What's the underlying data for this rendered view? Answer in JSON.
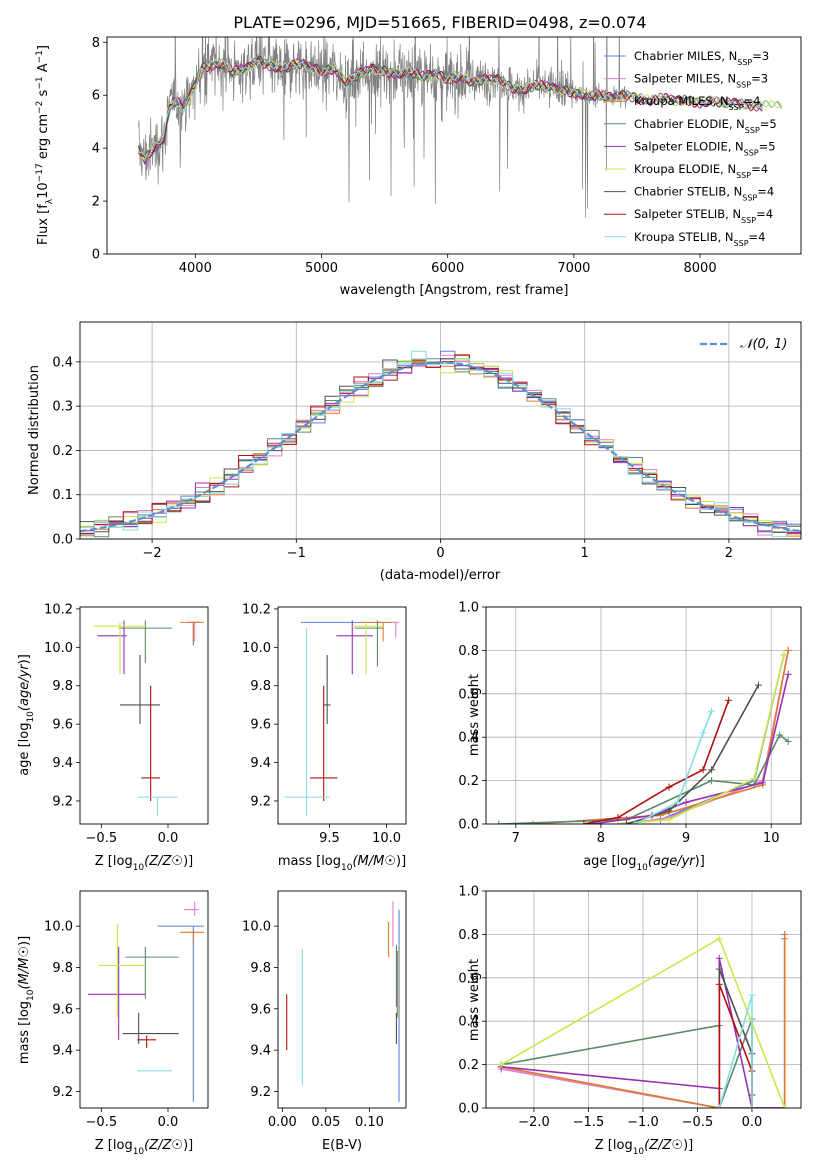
{
  "figure": {
    "title": "PLATE=0296, MJD=51665, FIBERID=0498, z=0.074"
  },
  "chart_data": [
    {
      "id": "spectrum",
      "type": "line",
      "xlabel": "wavelength [Angstrom, rest frame]",
      "ylabel": "Flux [fλ10⁻¹⁷ erg cm⁻² s⁻¹ A⁻¹]",
      "xlim": [
        3300,
        8800
      ],
      "ylim": [
        0,
        8.2
      ],
      "xticks": [
        4000,
        5000,
        6000,
        7000,
        8000
      ],
      "yticks": [
        0,
        2,
        4,
        6,
        8
      ],
      "legend_position": "right",
      "data_color": "#808080",
      "continuum": {
        "x": [
          3550,
          3600,
          3650,
          3700,
          3750,
          3800,
          3850,
          3900,
          3950,
          4000,
          4050,
          4100,
          4200,
          4300,
          4400,
          4500,
          4600,
          4700,
          4800,
          4900,
          5000,
          5100,
          5200,
          5300,
          5400,
          5500,
          5600,
          5700,
          5800,
          5900,
          6000,
          6100,
          6200,
          6300,
          6400,
          6500,
          6600,
          6700,
          6800,
          6900,
          7000,
          7100,
          7200,
          7300,
          7400,
          7500,
          7600,
          7700,
          7800,
          7900,
          8000,
          8100,
          8200,
          8300,
          8400,
          8500,
          8600,
          8700
        ],
        "y": [
          4.0,
          3.6,
          3.9,
          4.1,
          4.4,
          5.6,
          5.8,
          5.5,
          5.9,
          6.4,
          7.0,
          7.1,
          7.2,
          6.9,
          7.0,
          7.3,
          7.1,
          7.0,
          7.2,
          7.1,
          6.9,
          7.0,
          6.5,
          6.8,
          7.0,
          6.9,
          6.8,
          6.9,
          6.7,
          6.8,
          6.6,
          6.7,
          6.5,
          6.6,
          6.6,
          6.3,
          6.2,
          6.4,
          6.3,
          6.2,
          6.1,
          6.0,
          6.0,
          5.9,
          6.0,
          5.9,
          5.8,
          5.9,
          5.8,
          5.8,
          5.7,
          5.8,
          5.7,
          5.7,
          5.6,
          5.6,
          5.6,
          5.6
        ]
      },
      "series": [
        {
          "name": "Chabrier MILES, N_SSP=3",
          "label_main": "Chabrier MILES, N",
          "label_sub": "SSP",
          "label_end": "=3",
          "color": "#5b84d6"
        },
        {
          "name": "Salpeter MILES, N_SSP=3",
          "label_main": "Salpeter MILES, N",
          "label_sub": "SSP",
          "label_end": "=3",
          "color": "#e97ec8"
        },
        {
          "name": "Kroupa MILES, N_SSP=4",
          "label_main": "Kroupa MILES, N",
          "label_sub": "SSP",
          "label_end": "=4",
          "color": "#e07b2e"
        },
        {
          "name": "Chabrier ELODIE, N_SSP=5",
          "label_main": "Chabrier ELODIE, N",
          "label_sub": "SSP",
          "label_end": "=5",
          "color": "#5a8a6a"
        },
        {
          "name": "Salpeter ELODIE, N_SSP=5",
          "label_main": "Salpeter ELODIE, N",
          "label_sub": "SSP",
          "label_end": "=5",
          "color": "#9b30b5"
        },
        {
          "name": "Kroupa ELODIE, N_SSP=4",
          "label_main": "Kroupa ELODIE, N",
          "label_sub": "SSP",
          "label_end": "=4",
          "color": "#c8e84a"
        },
        {
          "name": "Chabrier STELIB, N_SSP=4",
          "label_main": "Chabrier STELIB, N",
          "label_sub": "SSP",
          "label_end": "=4",
          "color": "#505050"
        },
        {
          "name": "Salpeter STELIB, N_SSP=4",
          "label_main": "Salpeter STELIB, N",
          "label_sub": "SSP",
          "label_end": "=4",
          "color": "#b01010"
        },
        {
          "name": "Kroupa STELIB, N_SSP=4",
          "label_main": "Kroupa STELIB, N",
          "label_sub": "SSP",
          "label_end": "=4",
          "color": "#86dde0"
        }
      ]
    },
    {
      "id": "residuals",
      "type": "histogram",
      "xlabel": "(data-model)/error",
      "ylabel": "Normed distribution",
      "xlim": [
        -2.5,
        2.5
      ],
      "ylim": [
        0,
        0.49
      ],
      "xticks": [
        -2,
        -1,
        0,
        1,
        2
      ],
      "yticks": [
        0.0,
        0.1,
        0.2,
        0.3,
        0.4
      ],
      "grid": true,
      "reference_label": "𝒩(0, 1)",
      "reference_color": "#5b8fd0",
      "bin_width": 0.1,
      "bin_start": -2.5
    },
    {
      "id": "age_vs_Z",
      "type": "errorbar",
      "xlabel_main": "Z [log",
      "xlabel_rest": "(Z/Z",
      "xlabel": "Z [log10(Z/Z☉)]",
      "ylabel": "age  [log10(age/yr)]",
      "xlim": [
        -0.66,
        0.3
      ],
      "ylim": [
        9.08,
        10.21
      ],
      "xticks": [
        -0.5,
        0.0
      ],
      "yticks": [
        9.2,
        9.4,
        9.6,
        9.8,
        10.0,
        10.2
      ],
      "points": [
        {
          "series": 0,
          "x": 0.19,
          "y": 10.13,
          "xerr": [
            0.05,
            0.05
          ],
          "yerr": [
            0.12,
            0.0
          ]
        },
        {
          "series": 1,
          "x": 0.2,
          "y": 10.13,
          "xerr": [
            0.03,
            0.03
          ],
          "yerr": [
            0.1,
            0.0
          ]
        },
        {
          "series": 2,
          "x": 0.19,
          "y": 10.13,
          "xerr": [
            0.1,
            0.08
          ],
          "yerr": [
            0.1,
            0.0
          ]
        },
        {
          "series": 3,
          "x": -0.17,
          "y": 10.1,
          "xerr": [
            0.2,
            0.2
          ],
          "yerr": [
            0.18,
            0.04
          ]
        },
        {
          "series": 4,
          "x": -0.33,
          "y": 10.06,
          "xerr": [
            0.2,
            0.02
          ],
          "yerr": [
            0.2,
            0.08
          ]
        },
        {
          "series": 5,
          "x": -0.36,
          "y": 10.11,
          "xerr": [
            0.2,
            0.2
          ],
          "yerr": [
            0.25,
            0.02
          ]
        },
        {
          "series": 6,
          "x": -0.21,
          "y": 9.7,
          "xerr": [
            0.15,
            0.15
          ],
          "yerr": [
            0.1,
            0.26
          ]
        },
        {
          "series": 7,
          "x": -0.13,
          "y": 9.32,
          "xerr": [
            0.07,
            0.07
          ],
          "yerr": [
            0.12,
            0.48
          ]
        },
        {
          "series": 8,
          "x": -0.08,
          "y": 9.22,
          "xerr": [
            0.15,
            0.15
          ],
          "yerr": [
            0.1,
            0.0
          ]
        }
      ]
    },
    {
      "id": "age_vs_mass",
      "type": "errorbar",
      "xlabel": "mass [log10(M/M☉)]",
      "ylabel": "",
      "xlim": [
        9.05,
        10.17
      ],
      "ylim": [
        9.08,
        10.21
      ],
      "xticks": [
        9.5,
        10.0
      ],
      "yticks": [
        9.2,
        9.4,
        9.6,
        9.8,
        10.0,
        10.2
      ],
      "points": [
        {
          "series": 0,
          "x": 9.7,
          "y": 10.13,
          "xerr": [
            0.45,
            0.35
          ],
          "yerr": [
            0.0,
            0.0
          ]
        },
        {
          "series": 1,
          "x": 10.08,
          "y": 10.13,
          "xerr": [
            0.03,
            0.03
          ],
          "yerr": [
            0.08,
            0.0
          ]
        },
        {
          "series": 2,
          "x": 9.97,
          "y": 10.13,
          "xerr": [
            0.2,
            0.08
          ],
          "yerr": [
            0.1,
            0.0
          ]
        },
        {
          "series": 3,
          "x": 9.92,
          "y": 10.1,
          "xerr": [
            0.2,
            0.05
          ],
          "yerr": [
            0.2,
            0.04
          ]
        },
        {
          "series": 4,
          "x": 9.7,
          "y": 10.06,
          "xerr": [
            0.14,
            0.18
          ],
          "yerr": [
            0.2,
            0.08
          ]
        },
        {
          "series": 5,
          "x": 9.82,
          "y": 10.11,
          "xerr": [
            0.12,
            0.15
          ],
          "yerr": [
            0.25,
            0.02
          ]
        },
        {
          "series": 6,
          "x": 9.48,
          "y": 9.7,
          "xerr": [
            0.03,
            0.03
          ],
          "yerr": [
            0.1,
            0.26
          ]
        },
        {
          "series": 7,
          "x": 9.45,
          "y": 9.32,
          "xerr": [
            0.12,
            0.12
          ],
          "yerr": [
            0.12,
            0.48
          ]
        },
        {
          "series": 8,
          "x": 9.3,
          "y": 9.22,
          "xerr": [
            0.2,
            0.2
          ],
          "yerr": [
            0.1,
            0.88
          ]
        }
      ]
    },
    {
      "id": "weight_vs_age",
      "type": "line",
      "xlabel": "age  [log10(age/yr)]",
      "ylabel": "mass weight",
      "xlim": [
        6.65,
        10.35
      ],
      "ylim": [
        0,
        1.0
      ],
      "xticks": [
        7,
        8,
        9,
        10
      ],
      "yticks": [
        0.0,
        0.2,
        0.4,
        0.6,
        0.8,
        1.0
      ],
      "grid": true,
      "series": [
        {
          "x": [
            8.2,
            8.7,
            9.8,
            10.15
          ],
          "y": [
            0.0,
            0.02,
            0.2,
            0.78
          ]
        },
        {
          "x": [
            8.3,
            8.8,
            9.9,
            10.2
          ],
          "y": [
            0.0,
            0.03,
            0.2,
            0.8
          ]
        },
        {
          "x": [
            7.2,
            8.7,
            9.9,
            10.2
          ],
          "y": [
            0.0,
            0.04,
            0.18,
            0.8
          ]
        },
        {
          "x": [
            6.8,
            8.3,
            9.3,
            9.8,
            10.1,
            10.2
          ],
          "y": [
            0.0,
            0.02,
            0.2,
            0.18,
            0.41,
            0.38
          ]
        },
        {
          "x": [
            7.9,
            8.6,
            9.0,
            9.9,
            10.2
          ],
          "y": [
            0.0,
            0.04,
            0.1,
            0.19,
            0.69
          ]
        },
        {
          "x": [
            8.2,
            8.8,
            9.8,
            10.15
          ],
          "y": [
            0.0,
            0.02,
            0.21,
            0.78
          ]
        },
        {
          "x": [
            8.3,
            8.8,
            9.3,
            9.85
          ],
          "y": [
            0.0,
            0.06,
            0.25,
            0.64
          ]
        },
        {
          "x": [
            7.8,
            8.2,
            8.8,
            9.2,
            9.5
          ],
          "y": [
            0.0,
            0.03,
            0.17,
            0.25,
            0.57
          ]
        },
        {
          "x": [
            8.4,
            8.9,
            9.2,
            9.3
          ],
          "y": [
            0.0,
            0.1,
            0.42,
            0.52
          ]
        }
      ]
    },
    {
      "id": "mass_vs_Z",
      "type": "errorbar",
      "xlabel": "Z [log10(Z/Z☉)]",
      "ylabel": "mass [log10(M/M☉)]",
      "xlim": [
        -0.66,
        0.3
      ],
      "ylim": [
        9.12,
        10.17
      ],
      "xticks": [
        -0.5,
        0.0
      ],
      "yticks": [
        9.2,
        9.4,
        9.6,
        9.8,
        10.0
      ],
      "points": [
        {
          "series": 0,
          "x": 0.19,
          "y": 10.0,
          "xerr": [
            0.27,
            0.08
          ],
          "yerr": [
            0.85,
            0.0
          ]
        },
        {
          "series": 1,
          "x": 0.2,
          "y": 10.08,
          "xerr": [
            0.08,
            0.03
          ],
          "yerr": [
            0.03,
            0.04
          ]
        },
        {
          "series": 2,
          "x": 0.19,
          "y": 9.97,
          "xerr": [
            0.1,
            0.08
          ],
          "yerr": [
            0.05,
            0.0
          ]
        },
        {
          "series": 3,
          "x": -0.17,
          "y": 9.85,
          "xerr": [
            0.15,
            0.25
          ],
          "yerr": [
            0.2,
            0.05
          ]
        },
        {
          "series": 4,
          "x": -0.37,
          "y": 9.67,
          "xerr": [
            0.23,
            0.2
          ],
          "yerr": [
            0.22,
            0.23
          ]
        },
        {
          "series": 5,
          "x": -0.38,
          "y": 9.81,
          "xerr": [
            0.14,
            0.2
          ],
          "yerr": [
            0.25,
            0.2
          ]
        },
        {
          "series": 6,
          "x": -0.22,
          "y": 9.48,
          "xerr": [
            0.12,
            0.3
          ],
          "yerr": [
            0.05,
            0.1
          ]
        },
        {
          "series": 7,
          "x": -0.16,
          "y": 9.45,
          "xerr": [
            0.07,
            0.07
          ],
          "yerr": [
            0.04,
            0.02
          ]
        },
        {
          "series": 8,
          "x": -0.1,
          "y": 9.3,
          "xerr": [
            0.13,
            0.13
          ],
          "yerr": [
            0.0,
            0.0
          ]
        }
      ]
    },
    {
      "id": "mass_vs_ebv",
      "type": "errorbar",
      "xlabel": "E(B-V)",
      "ylabel": "",
      "xlim": [
        -0.005,
        0.142
      ],
      "ylim": [
        9.12,
        10.17
      ],
      "xticks": [
        0.0,
        0.05,
        0.1
      ],
      "xtick_labels": [
        "0.00",
        "0.05",
        "0.10"
      ],
      "yticks": [
        9.2,
        9.4,
        9.6,
        9.8,
        10.0
      ],
      "points": [
        {
          "series": 0,
          "x": 0.134,
          "y": 9.9,
          "xerr": [
            0.0,
            0.0
          ],
          "yerr": [
            0.75,
            0.18
          ]
        },
        {
          "series": 1,
          "x": 0.127,
          "y": 10.0,
          "xerr": [
            0.0,
            0.0
          ],
          "yerr": [
            0.1,
            0.12
          ]
        },
        {
          "series": 2,
          "x": 0.122,
          "y": 9.9,
          "xerr": [
            0.0,
            0.0
          ],
          "yerr": [
            0.05,
            0.12
          ]
        },
        {
          "series": 3,
          "x": 0.131,
          "y": 9.86,
          "xerr": [
            0.0,
            0.0
          ],
          "yerr": [
            0.25,
            0.05
          ]
        },
        {
          "series": 4,
          "x": 0.132,
          "y": 9.68,
          "xerr": [
            0.0,
            0.0
          ],
          "yerr": [
            0.12,
            0.2
          ]
        },
        {
          "series": 5,
          "x": 0.133,
          "y": 9.75,
          "xerr": [
            0.0,
            0.0
          ],
          "yerr": [
            0.2,
            0.15
          ]
        },
        {
          "series": 6,
          "x": 0.131,
          "y": 9.48,
          "xerr": [
            0.0,
            0.0
          ],
          "yerr": [
            0.05,
            0.1
          ]
        },
        {
          "series": 7,
          "x": 0.005,
          "y": 9.53,
          "xerr": [
            0.0,
            0.0
          ],
          "yerr": [
            0.13,
            0.14
          ]
        },
        {
          "series": 8,
          "x": 0.023,
          "y": 9.56,
          "xerr": [
            0.0,
            0.0
          ],
          "yerr": [
            0.33,
            0.33
          ]
        }
      ]
    },
    {
      "id": "weight_vs_Z",
      "type": "line",
      "xlabel": "Z [log10(Z/Z☉)]",
      "ylabel": "mass weight",
      "xlim": [
        -2.44,
        0.45
      ],
      "ylim": [
        0,
        1.0
      ],
      "xticks": [
        -2.0,
        -1.5,
        -1.0,
        -0.5,
        0.0
      ],
      "yticks": [
        0.0,
        0.2,
        0.4,
        0.6,
        0.8,
        1.0
      ],
      "grid": true,
      "series": [
        {
          "x": [
            -2.3,
            -0.3,
            0.3,
            0.3
          ],
          "y": [
            0.18,
            0.0,
            0.0,
            0.78
          ]
        },
        {
          "x": [
            -2.3,
            -0.3,
            0.3,
            0.3
          ],
          "y": [
            0.18,
            0.0,
            0.0,
            0.8
          ]
        },
        {
          "x": [
            -2.3,
            -0.3,
            0.3,
            0.3
          ],
          "y": [
            0.19,
            0.0,
            0.0,
            0.8
          ]
        },
        {
          "x": [
            -2.3,
            -0.3,
            -0.3,
            0.0,
            0.0,
            0.3
          ],
          "y": [
            0.2,
            0.38,
            0.0,
            0.41,
            0.0,
            0.0
          ]
        },
        {
          "x": [
            -2.3,
            -0.3,
            -0.3,
            0.0,
            0.3,
            0.3
          ],
          "y": [
            0.19,
            0.09,
            0.69,
            0.0,
            0.0,
            0.0
          ]
        },
        {
          "x": [
            -2.3,
            -0.3,
            0.3,
            0.3
          ],
          "y": [
            0.2,
            0.78,
            0.0,
            0.0
          ]
        },
        {
          "x": [
            -0.3,
            -0.3,
            0.0,
            0.0
          ],
          "y": [
            0.0,
            0.64,
            0.25,
            0.06
          ]
        },
        {
          "x": [
            -0.3,
            -0.3,
            0.0,
            0.0
          ],
          "y": [
            0.0,
            0.57,
            0.17,
            0.0
          ]
        },
        {
          "x": [
            -0.3,
            0.0,
            0.0
          ],
          "y": [
            0.0,
            0.52,
            0.0
          ]
        }
      ]
    }
  ]
}
